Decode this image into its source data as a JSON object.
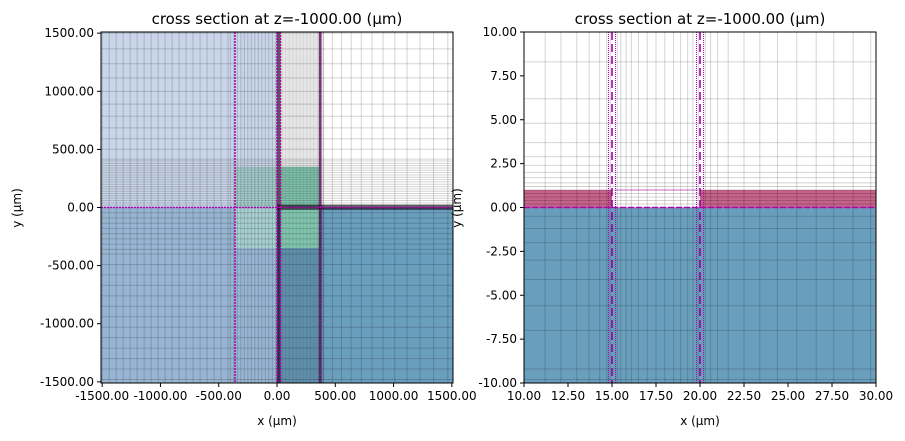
{
  "chart_data": [
    {
      "type": "heatmap",
      "title": "cross section at z=-1000.00 (μm)",
      "xlabel": "x (μm)",
      "ylabel": "y (μm)",
      "xlim": [
        -1510,
        1510
      ],
      "ylim": [
        -1510,
        1510
      ],
      "xticks": [
        -1500,
        -1000,
        -500,
        0,
        500,
        1000,
        1500
      ],
      "xtick_labels": [
        "-1500.00",
        "-1000.00",
        "-500.00",
        "0.00",
        "500.00",
        "1000.00",
        "1500.00"
      ],
      "yticks": [
        -1500,
        -1000,
        -500,
        0,
        500,
        1000,
        1500
      ],
      "ytick_labels": [
        "-1500.00",
        "-1000.00",
        "-500.00",
        "0.00",
        "500.00",
        "1000.00",
        "1500.00"
      ],
      "regions": [
        {
          "name": "pml-upper-left",
          "x": [
            -1510,
            0
          ],
          "y": [
            0,
            1510
          ],
          "color": "#c9d6ea"
        },
        {
          "name": "pml-lower-left",
          "x": [
            -1510,
            0
          ],
          "y": [
            -1510,
            0
          ],
          "color": "#97b5d2"
        },
        {
          "name": "substrate",
          "x": [
            0,
            1510
          ],
          "y": [
            -1510,
            0
          ],
          "color": "#6a9ebd"
        },
        {
          "name": "source-region-left",
          "x": [
            -360,
            0
          ],
          "y": [
            -350,
            350
          ],
          "color": "#a8d0d0"
        },
        {
          "name": "source-region",
          "x": [
            30,
            360
          ],
          "y": [
            -350,
            350
          ],
          "color": "#8fd9c0"
        }
      ],
      "markers": {
        "vertical": [
          -360,
          0,
          30,
          370
        ],
        "horizontal": [
          0
        ],
        "color": "#b000b0"
      }
    },
    {
      "type": "heatmap",
      "title": "cross section at z=-1000.00 (μm)",
      "xlabel": "x (μm)",
      "ylabel": "y (μm)",
      "xlim": [
        10,
        30
      ],
      "ylim": [
        -10,
        10
      ],
      "xticks": [
        10,
        12.5,
        15,
        17.5,
        20,
        22.5,
        25,
        27.5,
        30
      ],
      "xtick_labels": [
        "10.00",
        "12.50",
        "15.00",
        "17.50",
        "20.00",
        "22.50",
        "25.00",
        "27.50",
        "30.00"
      ],
      "yticks": [
        -10,
        -7.5,
        -5,
        -2.5,
        0,
        2.5,
        5,
        7.5,
        10
      ],
      "ytick_labels": [
        "-10.00",
        "-7.50",
        "-5.00",
        "-2.50",
        "0.00",
        "2.50",
        "5.00",
        "7.50",
        "10.00"
      ],
      "regions": [
        {
          "name": "substrate",
          "x": [
            10,
            30
          ],
          "y": [
            -10,
            0
          ],
          "color": "#6a9ebd"
        },
        {
          "name": "film-left",
          "x": [
            10,
            15
          ],
          "y": [
            0,
            1
          ],
          "color": "#c5628a"
        },
        {
          "name": "film-right",
          "x": [
            20,
            30
          ],
          "y": [
            0,
            1
          ],
          "color": "#c5628a"
        }
      ],
      "markers": {
        "dashed_vertical": [
          15,
          20
        ],
        "dotted_vertical": [
          14.8,
          15.2,
          19.8,
          20.2
        ],
        "dotted_box": {
          "x": [
            15.2,
            19.8
          ],
          "y": [
            0,
            1
          ]
        },
        "color": "#b000b0"
      }
    }
  ]
}
